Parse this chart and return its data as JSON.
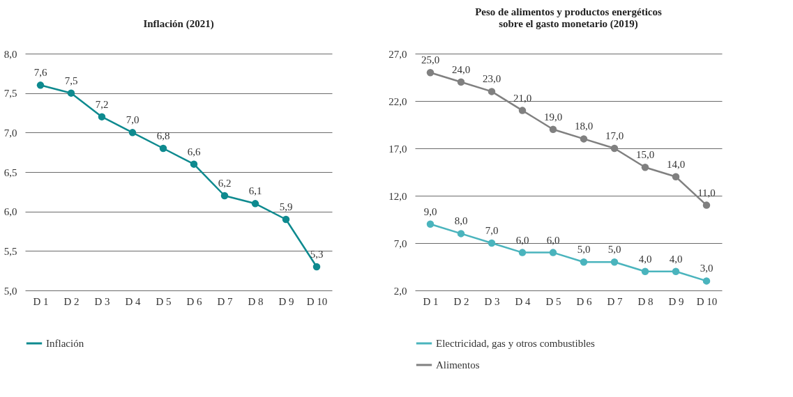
{
  "chart_data": [
    {
      "type": "line",
      "title": "Inflación (2021)",
      "categories": [
        "D 1",
        "D 2",
        "D 3",
        "D 4",
        "D 5",
        "D 6",
        "D 7",
        "D 8",
        "D 9",
        "D 10"
      ],
      "series": [
        {
          "name": "Inflación",
          "color": "#0e8a8f",
          "values": [
            7.6,
            7.5,
            7.2,
            7.0,
            6.8,
            6.6,
            6.2,
            6.1,
            5.9,
            5.3
          ],
          "value_labels": [
            "7,6",
            "7,5",
            "7,2",
            "7,0",
            "6,8",
            "6,6",
            "6,2",
            "6,1",
            "5,9",
            "5,3"
          ]
        }
      ],
      "ylim": [
        5,
        8
      ],
      "yticks": [
        {
          "value": 5,
          "label": "5,0"
        },
        {
          "value": 5.5,
          "label": "5,5"
        },
        {
          "value": 6,
          "label": "6,0"
        },
        {
          "value": 6.5,
          "label": "6,5"
        },
        {
          "value": 7,
          "label": "7,0"
        },
        {
          "value": 7.5,
          "label": "7,5"
        },
        {
          "value": 8,
          "label": "8,0"
        }
      ],
      "grid": "y",
      "legend": "bottom",
      "marker": "circle"
    },
    {
      "type": "line",
      "title": "Peso de alimentos y productos energéticos sobre el gasto monetario (2019)",
      "categories": [
        "D 1",
        "D 2",
        "D 3",
        "D 4",
        "D 5",
        "D 6",
        "D 7",
        "D 8",
        "D 9",
        "D 10"
      ],
      "series": [
        {
          "name": "Electricidad, gas y otros combustibles",
          "color": "#4ab4bd",
          "values": [
            9,
            8,
            7,
            6,
            6,
            5,
            5,
            4,
            4,
            3
          ],
          "value_labels": [
            "9,0",
            "8,0",
            "7,0",
            "6,0",
            "6,0",
            "5,0",
            "5,0",
            "4,0",
            "4,0",
            "3,0"
          ]
        },
        {
          "name": "Alimentos",
          "color": "#808080",
          "values": [
            25,
            24,
            23,
            21,
            19,
            18,
            17,
            15,
            14,
            11
          ],
          "value_labels": [
            "25,0",
            "24,0",
            "23,0",
            "21,0",
            "19,0",
            "18,0",
            "17,0",
            "15,0",
            "14,0",
            "11,0"
          ]
        }
      ],
      "ylim": [
        2,
        27
      ],
      "yticks": [
        {
          "value": 2,
          "label": "2,0"
        },
        {
          "value": 7,
          "label": "7,0"
        },
        {
          "value": 12,
          "label": "12,0"
        },
        {
          "value": 17,
          "label": "17,0"
        },
        {
          "value": 22,
          "label": "22,0"
        },
        {
          "value": 27,
          "label": "27,0"
        }
      ],
      "grid": "y",
      "legend": "bottom",
      "marker": "circle"
    }
  ]
}
